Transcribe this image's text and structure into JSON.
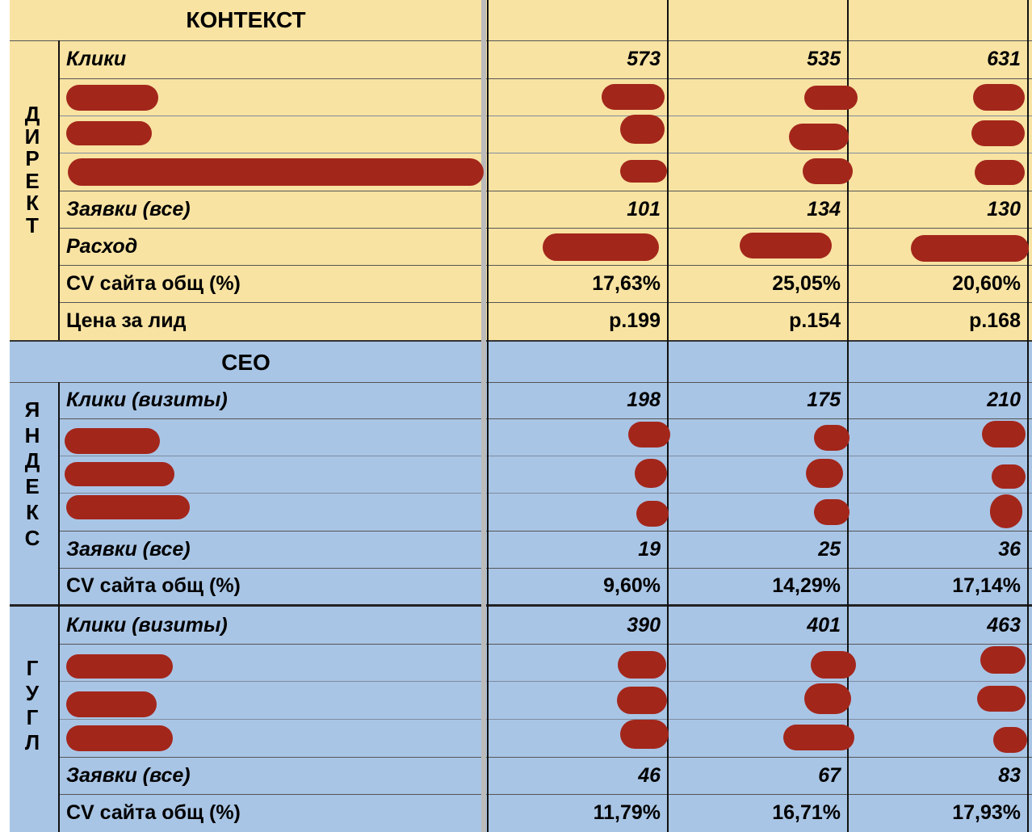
{
  "sections": {
    "context": {
      "title": "КОНТЕКСТ",
      "label_chars": [
        "Д",
        "И",
        "Р",
        "Е",
        "К",
        "Т"
      ],
      "rows": {
        "clicks": {
          "label": "Клики",
          "values": [
            "573",
            "535",
            "631"
          ]
        },
        "requests": {
          "label": "Заявки (все)",
          "values": [
            "101",
            "134",
            "130"
          ]
        },
        "expense": {
          "label": "Расход"
        },
        "cv": {
          "label": "CV сайта общ (%)",
          "values": [
            "17,63%",
            "25,05%",
            "20,60%"
          ]
        },
        "lead": {
          "label": "Цена за лид",
          "values": [
            "р.199",
            "р.154",
            "р.168"
          ]
        }
      }
    },
    "seo": {
      "title": "СЕО",
      "yandex": {
        "label_chars": [
          "Я",
          "Н",
          "Д",
          "Е",
          "К",
          "С"
        ],
        "clicks": {
          "label": "Клики (визиты)",
          "values": [
            "198",
            "175",
            "210"
          ]
        },
        "requests": {
          "label": "Заявки (все)",
          "values": [
            "19",
            "25",
            "36"
          ]
        },
        "cv": {
          "label": "CV сайта общ (%)",
          "values": [
            "9,60%",
            "14,29%",
            "17,14%"
          ]
        }
      },
      "google": {
        "label_chars": [
          "Г",
          "У",
          "Г",
          "Л"
        ],
        "clicks": {
          "label": "Клики (визиты)",
          "values": [
            "390",
            "401",
            "463"
          ]
        },
        "requests": {
          "label": "Заявки (все)",
          "values": [
            "46",
            "67",
            "83"
          ]
        },
        "cv": {
          "label": "CV сайта общ (%)",
          "values": [
            "11,79%",
            "16,71%",
            "17,93%"
          ]
        }
      }
    }
  },
  "colors": {
    "context_bg": "#f8e3a2",
    "seo_bg": "#a9c5e5",
    "redaction": "#a3261b"
  }
}
